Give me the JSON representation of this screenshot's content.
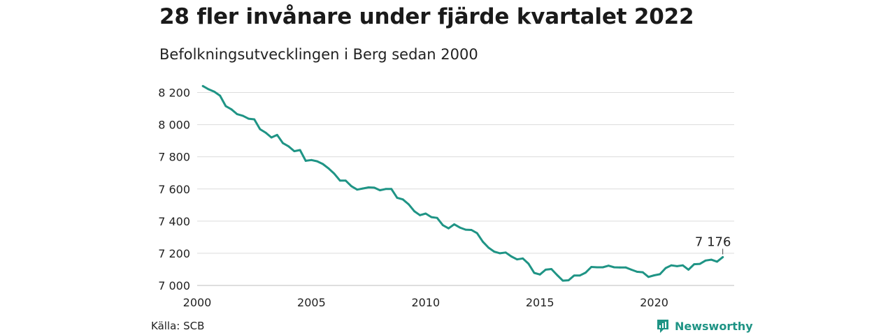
{
  "title": "28 fler invånare under fjärde kvartalet 2022",
  "subtitle": "Befolkningsutvecklingen i Berg sedan 2000",
  "source": "Källa: SCB",
  "brand": {
    "name": "Newsworthy",
    "icon": "newsworthy-logo-icon",
    "color": "#1f9485"
  },
  "chart_data": {
    "type": "line",
    "title": "28 fler invånare under fjärde kvartalet 2022",
    "subtitle": "Befolkningsutvecklingen i Berg sedan 2000",
    "xlabel": "",
    "ylabel": "",
    "xlim": [
      2000,
      2023.5
    ],
    "ylim": [
      7000,
      8250
    ],
    "xticks": [
      2000,
      2005,
      2010,
      2015,
      2020
    ],
    "xtick_labels": [
      "2000",
      "2005",
      "2010",
      "2015",
      "2020"
    ],
    "yticks": [
      7000,
      7200,
      7400,
      7600,
      7800,
      8000,
      8200
    ],
    "ytick_labels": [
      "7 000",
      "7 200",
      "7 400",
      "7 600",
      "7 800",
      "8 000",
      "8 200"
    ],
    "grid": "horizontal",
    "line_color": "#1f9485",
    "end_label": "7 176",
    "series": [
      {
        "x": [
          2000.25,
          2000.5,
          2000.75,
          2001.0,
          2001.25,
          2001.5,
          2001.75,
          2002.0,
          2002.25,
          2002.5,
          2002.75,
          2003.0,
          2003.25,
          2003.5,
          2003.75,
          2004.0,
          2004.25,
          2004.5,
          2004.75,
          2005.0,
          2005.25,
          2005.5,
          2005.75,
          2006.0,
          2006.25,
          2006.5,
          2006.75,
          2007.0,
          2007.25,
          2007.5,
          2007.75,
          2008.0,
          2008.25,
          2008.5,
          2008.75,
          2009.0,
          2009.25,
          2009.5,
          2009.75,
          2010.0,
          2010.25,
          2010.5,
          2010.75,
          2011.0,
          2011.25,
          2011.5,
          2011.75,
          2012.0,
          2012.25,
          2012.5,
          2012.75,
          2013.0,
          2013.25,
          2013.5,
          2013.75,
          2014.0,
          2014.25,
          2014.5,
          2014.75,
          2015.0,
          2015.25,
          2015.5,
          2015.75,
          2016.0,
          2016.25,
          2016.5,
          2016.75,
          2017.0,
          2017.25,
          2017.5,
          2017.75,
          2018.0,
          2018.25,
          2018.5,
          2018.75,
          2019.0,
          2019.25,
          2019.5,
          2019.75,
          2020.0,
          2020.25,
          2020.5,
          2020.75,
          2021.0,
          2021.25,
          2021.5,
          2021.75,
          2022.0,
          2022.25,
          2022.5,
          2022.75,
          2023.0
        ],
        "values": [
          8240,
          8220,
          8205,
          8180,
          8115,
          8095,
          8065,
          8055,
          8037,
          8033,
          7972,
          7950,
          7920,
          7936,
          7885,
          7865,
          7835,
          7842,
          7775,
          7780,
          7772,
          7755,
          7728,
          7695,
          7652,
          7652,
          7617,
          7596,
          7603,
          7610,
          7608,
          7592,
          7600,
          7600,
          7545,
          7535,
          7505,
          7462,
          7437,
          7447,
          7425,
          7420,
          7375,
          7355,
          7380,
          7360,
          7347,
          7345,
          7325,
          7272,
          7235,
          7210,
          7200,
          7205,
          7180,
          7162,
          7168,
          7135,
          7078,
          7068,
          7098,
          7102,
          7065,
          7030,
          7032,
          7062,
          7062,
          7080,
          7115,
          7113,
          7113,
          7123,
          7113,
          7112,
          7112,
          7098,
          7085,
          7082,
          7053,
          7063,
          7070,
          7108,
          7125,
          7120,
          7125,
          7098,
          7132,
          7134,
          7155,
          7160,
          7148,
          7176
        ]
      }
    ]
  }
}
